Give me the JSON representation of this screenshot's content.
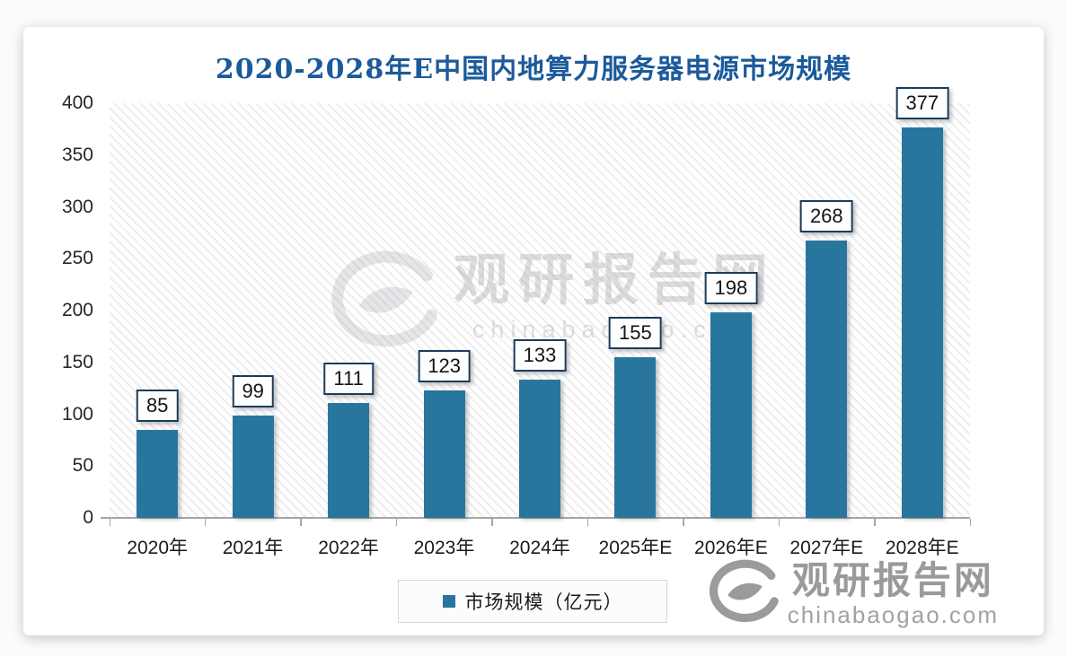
{
  "chart_data": {
    "type": "bar",
    "title": "2020-2028年E中国内地算力服务器电源市场规模",
    "categories": [
      "2020年",
      "2021年",
      "2022年",
      "2023年",
      "2024年",
      "2025年E",
      "2026年E",
      "2027年E",
      "2028年E"
    ],
    "values": [
      85,
      99,
      111,
      123,
      133,
      155,
      198,
      268,
      377
    ],
    "legend_label": "市场规模（亿元）",
    "legend_position": "bottom-center",
    "xlabel": "",
    "ylabel": "",
    "ylim": [
      0,
      400
    ],
    "yticks": [
      0,
      50,
      100,
      150,
      200,
      250,
      300,
      350,
      400
    ],
    "grid": false,
    "plot_background": "diagonal-hatch",
    "bar_color": "#28769E",
    "title_color": "#1B5A9B",
    "label_box_border_color": "#1B3C5C",
    "axis_color": "#A6A6A6"
  },
  "watermark": {
    "name": "观研报告网",
    "domain": "chinabaogao.com"
  }
}
